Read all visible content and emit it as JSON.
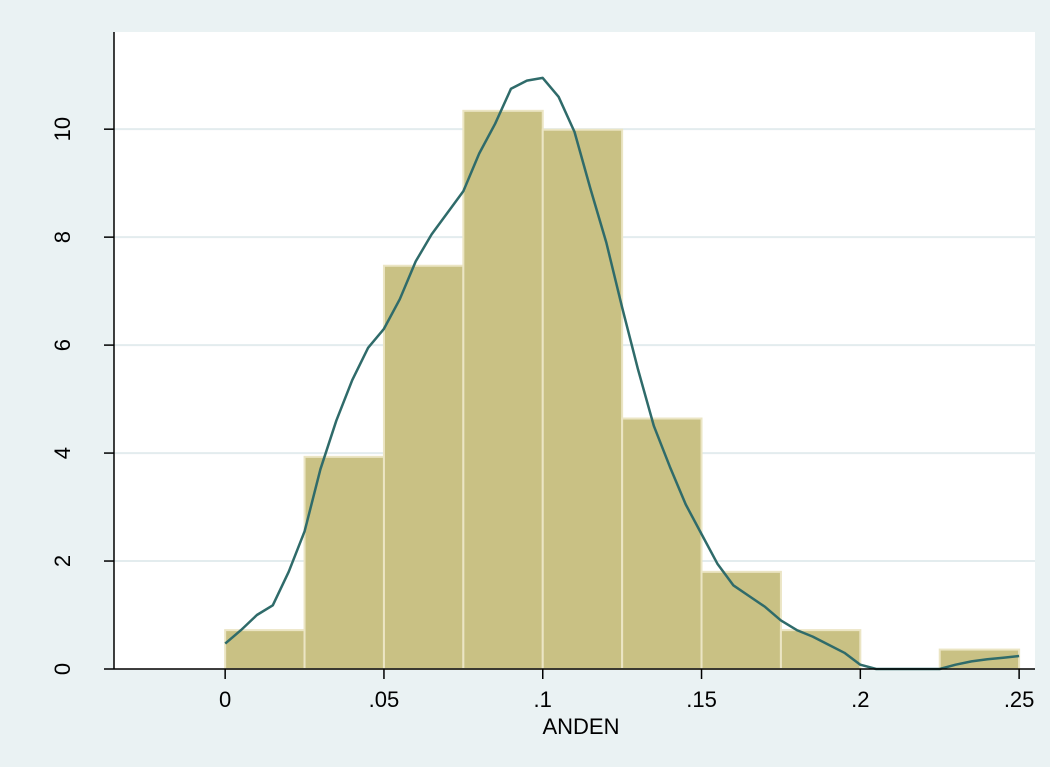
{
  "chart_data": {
    "type": "bar",
    "subtype": "histogram-with-density",
    "title": "",
    "xlabel": "ANDEN",
    "ylabel": "",
    "xlim": [
      -0.035,
      0.255
    ],
    "ylim": [
      0,
      11.8
    ],
    "x_ticks": [
      0,
      0.05,
      0.1,
      0.15,
      0.2,
      0.25
    ],
    "x_tick_labels": [
      "0",
      ".05",
      ".1",
      ".15",
      ".2",
      ".25"
    ],
    "y_ticks": [
      0,
      2,
      4,
      6,
      8,
      10
    ],
    "y_tick_labels": [
      "0",
      "2",
      "4",
      "6",
      "8",
      "10"
    ],
    "grid": {
      "y": true,
      "x": false
    },
    "bins": [
      {
        "x0": 0.0,
        "x1": 0.025,
        "value": 0.72
      },
      {
        "x0": 0.025,
        "x1": 0.05,
        "value": 3.93
      },
      {
        "x0": 0.05,
        "x1": 0.075,
        "value": 7.47
      },
      {
        "x0": 0.075,
        "x1": 0.1,
        "value": 10.34
      },
      {
        "x0": 0.1,
        "x1": 0.125,
        "value": 9.99
      },
      {
        "x0": 0.125,
        "x1": 0.15,
        "value": 4.64
      },
      {
        "x0": 0.15,
        "x1": 0.175,
        "value": 1.8
      },
      {
        "x0": 0.175,
        "x1": 0.2,
        "value": 0.72
      },
      {
        "x0": 0.2,
        "x1": 0.225,
        "value": 0
      },
      {
        "x0": 0.225,
        "x1": 0.25,
        "value": 0.36
      }
    ],
    "density": {
      "x": [
        0,
        0.005,
        0.01,
        0.015,
        0.02,
        0.025,
        0.03,
        0.035,
        0.04,
        0.045,
        0.05,
        0.055,
        0.06,
        0.065,
        0.07,
        0.075,
        0.08,
        0.085,
        0.09,
        0.095,
        0.1,
        0.105,
        0.11,
        0.115,
        0.12,
        0.125,
        0.13,
        0.135,
        0.14,
        0.145,
        0.15,
        0.155,
        0.16,
        0.165,
        0.17,
        0.175,
        0.18,
        0.185,
        0.19,
        0.195,
        0.2,
        0.205,
        0.21,
        0.215,
        0.22,
        0.225,
        0.23,
        0.235,
        0.24,
        0.245,
        0.25
      ],
      "y": [
        0.47,
        0.72,
        1.0,
        1.18,
        1.8,
        2.55,
        3.7,
        4.6,
        5.35,
        5.95,
        6.3,
        6.85,
        7.55,
        8.05,
        8.45,
        8.85,
        9.55,
        10.1,
        10.75,
        10.9,
        10.95,
        10.6,
        9.95,
        8.9,
        7.9,
        6.7,
        5.55,
        4.5,
        3.75,
        3.05,
        2.5,
        1.95,
        1.55,
        1.35,
        1.15,
        0.9,
        0.72,
        0.6,
        0.45,
        0.3,
        0.08,
        0.0,
        0.0,
        0.0,
        0.0,
        0.0,
        0.08,
        0.14,
        0.18,
        0.21,
        0.24
      ]
    },
    "colors": {
      "bar_fill": "#c9c184",
      "bar_stroke": "#ebe5c4",
      "density_line": "#2f6b6a",
      "grid": "#e3ecee",
      "plot_bg": "#ffffff",
      "page_bg": "#eaf2f3"
    }
  }
}
